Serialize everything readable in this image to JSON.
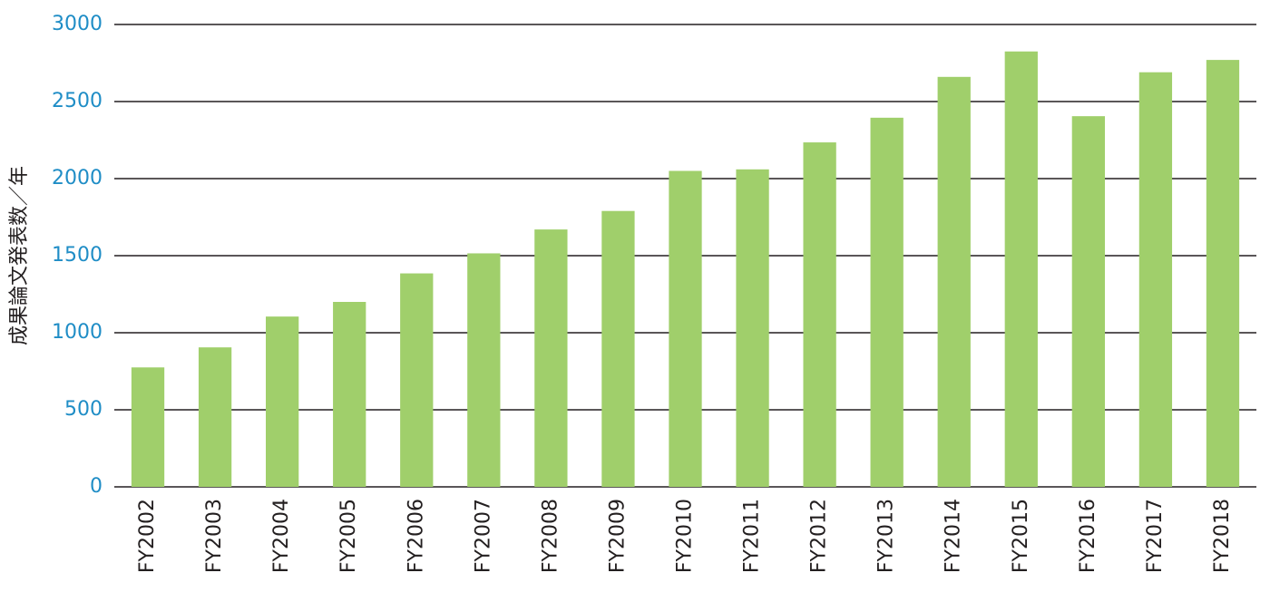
{
  "chart_data": {
    "type": "bar",
    "y_label": "成果論文発表数／年",
    "categories": [
      "FY2002",
      "FY2003",
      "FY2004",
      "FY2005",
      "FY2006",
      "FY2007",
      "FY2008",
      "FY2009",
      "FY2010",
      "FY2011",
      "FY2012",
      "FY2013",
      "FY2014",
      "FY2015",
      "FY2016",
      "FY2017",
      "FY2018"
    ],
    "values": [
      775,
      905,
      1105,
      1200,
      1385,
      1515,
      1670,
      1790,
      2050,
      2060,
      2235,
      2395,
      2660,
      2825,
      2405,
      2690,
      2770
    ],
    "color": "#a0cf6b",
    "ylim": [
      0,
      3000
    ],
    "yticks": [
      0,
      500,
      1000,
      1500,
      2000,
      2500,
      3000
    ],
    "grid": true
  }
}
